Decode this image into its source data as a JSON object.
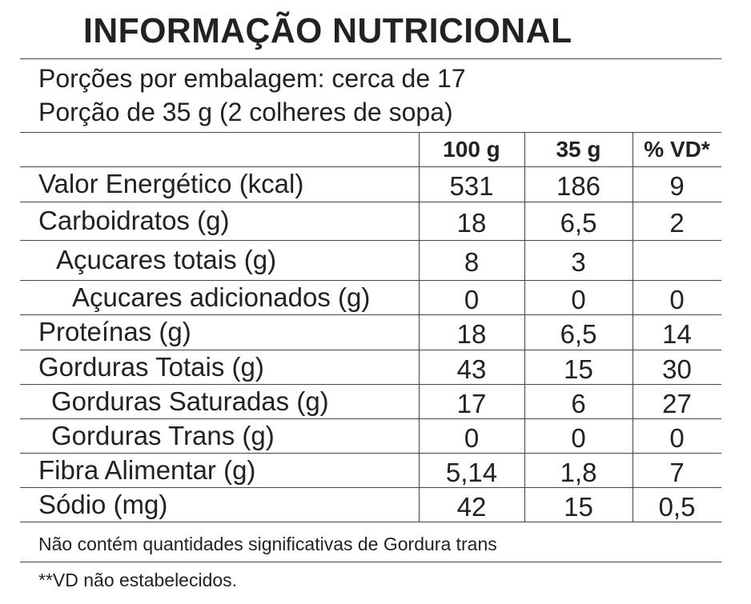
{
  "header": {
    "title": "INFORMAÇÃO NUTRICIONAL",
    "servings": "Porções por embalagem: cerca de 17",
    "portion": "Porção de 35 g (2 colheres de sopa)"
  },
  "table": {
    "columns": [
      "100 g",
      "35 g",
      "% VD*"
    ],
    "rows": [
      {
        "label": "Valor Energético (kcal)",
        "per100g": "531",
        "per35g": "186",
        "vd": "9"
      },
      {
        "label": "Carboidratos (g)",
        "per100g": "18",
        "per35g": "6,5",
        "vd": "2"
      },
      {
        "label": "Açucares totais (g)",
        "per100g": "8",
        "per35g": "3"
      },
      {
        "label": "Açucares adicionados (g)",
        "per100g": "0",
        "per35g": "0",
        "vd": "0"
      },
      {
        "label": "Proteínas (g)",
        "per100g": "18",
        "per35g": "6,5",
        "vd": "14"
      },
      {
        "label": "Gorduras Totais (g)",
        "per100g": "43",
        "per35g": "15",
        "vd": "30"
      },
      {
        "label": "Gorduras Saturadas (g)",
        "per100g": "17",
        "per35g": "6",
        "vd": "27"
      },
      {
        "label": "Gorduras Trans (g)",
        "per100g": "0",
        "per35g": "0",
        "vd": "0"
      },
      {
        "label": "Fibra Alimentar (g)",
        "per100g": "5,14",
        "per35g": "1,8",
        "vd": "7"
      },
      {
        "label": "Sódio (mg)",
        "per100g": "42",
        "per35g": "15",
        "vd": "0,5"
      }
    ]
  },
  "footnotes": [
    "Não contém quantidades significativas de Gordura trans",
    "**VD não estabelecidos."
  ]
}
